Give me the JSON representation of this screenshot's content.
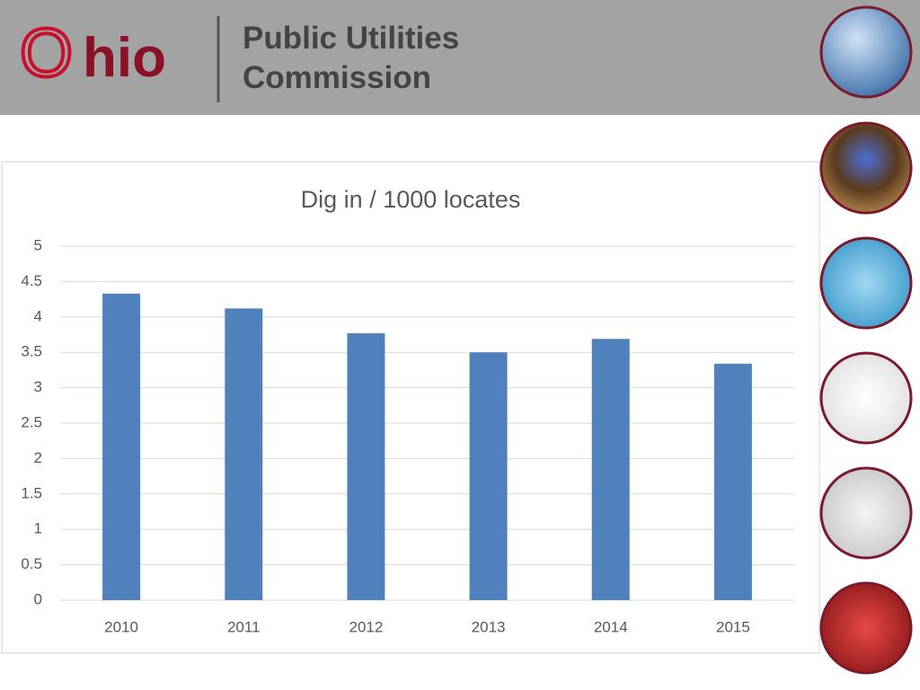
{
  "header": {
    "logo_o": "O",
    "logo_rest": "hio",
    "org_line1": "Public Utilities",
    "org_line2": "Commission"
  },
  "chart_data": {
    "type": "bar",
    "title": "Dig in / 1000 locates",
    "categories": [
      "2010",
      "2011",
      "2012",
      "2013",
      "2014",
      "2015"
    ],
    "values": [
      4.33,
      4.12,
      3.77,
      3.5,
      3.69,
      3.34
    ],
    "color": "#4f81bd",
    "ylim": [
      0,
      5
    ],
    "yticks": [
      0,
      0.5,
      1,
      1.5,
      2,
      2.5,
      3,
      3.5,
      4,
      4.5,
      5
    ],
    "grid": true
  }
}
